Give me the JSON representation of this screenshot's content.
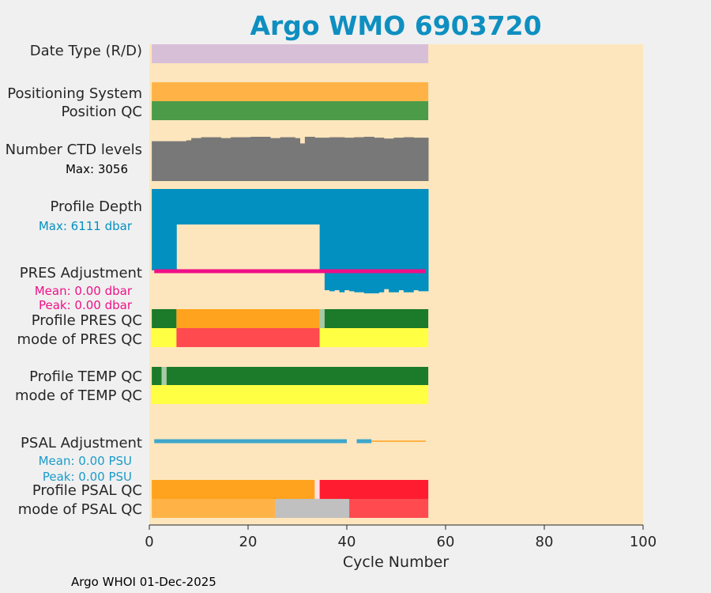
{
  "chart_data": {
    "type": "bar",
    "title": "Argo WMO 6903720",
    "xlabel": "Cycle Number",
    "xlim": [
      0,
      100
    ],
    "xticks": [
      "0",
      "20",
      "40",
      "60",
      "80",
      "100"
    ],
    "footer": "Argo WHOI 01-Dec-2025",
    "row_labels": [
      "Date Type (R/D)",
      "Positioning System",
      "Position QC",
      "Number CTD levels",
      "Profile Depth",
      "PRES Adjustment",
      "Profile PRES QC",
      "mode of PRES QC",
      "Profile TEMP QC",
      "mode of TEMP QC",
      "PSAL Adjustment",
      "Profile PSAL QC",
      "mode of PSAL QC"
    ],
    "annotations": {
      "ctd_max": "Max: 3056",
      "depth_max": "Max: 6111 dbar",
      "pres_mean": "Mean: 0.00 dbar",
      "pres_peak": "Peak: 0.00 dbar",
      "psal_mean": "Mean: 0.00 PSU",
      "psal_peak": "Peak: 0.00 PSU"
    },
    "ctd_levels_max": 3056,
    "ctd_levels_profile": [
      {
        "start": 0.5,
        "end": 7.5,
        "rel": 0.9
      },
      {
        "start": 7.5,
        "end": 8.5,
        "rel": 0.92
      },
      {
        "start": 8.5,
        "end": 10.5,
        "rel": 0.97
      },
      {
        "start": 10.5,
        "end": 14.5,
        "rel": 0.99
      },
      {
        "start": 14.5,
        "end": 16.5,
        "rel": 0.97
      },
      {
        "start": 16.5,
        "end": 20.5,
        "rel": 0.99
      },
      {
        "start": 20.5,
        "end": 24.5,
        "rel": 1.0
      },
      {
        "start": 24.5,
        "end": 26.5,
        "rel": 0.97
      },
      {
        "start": 26.5,
        "end": 29.5,
        "rel": 0.99
      },
      {
        "start": 29.5,
        "end": 30.5,
        "rel": 0.97
      },
      {
        "start": 30.5,
        "end": 31.5,
        "rel": 0.85
      },
      {
        "start": 31.5,
        "end": 33.5,
        "rel": 1.0
      },
      {
        "start": 33.5,
        "end": 36.5,
        "rel": 0.98
      },
      {
        "start": 36.5,
        "end": 39.5,
        "rel": 0.99
      },
      {
        "start": 39.5,
        "end": 41.5,
        "rel": 0.98
      },
      {
        "start": 41.5,
        "end": 43.5,
        "rel": 0.99
      },
      {
        "start": 43.5,
        "end": 45.5,
        "rel": 1.0
      },
      {
        "start": 45.5,
        "end": 47.5,
        "rel": 0.98
      },
      {
        "start": 47.5,
        "end": 49.5,
        "rel": 0.96
      },
      {
        "start": 49.5,
        "end": 51.5,
        "rel": 0.98
      },
      {
        "start": 51.5,
        "end": 53.5,
        "rel": 0.99
      },
      {
        "start": 53.5,
        "end": 56.5,
        "rel": 0.98
      }
    ],
    "profile_depth_max_dbar": 6111,
    "profile_depth": [
      {
        "start": 0.5,
        "end": 5.5,
        "rel": 0.78
      },
      {
        "start": 5.5,
        "end": 34.5,
        "rel": 0.34
      },
      {
        "start": 34.5,
        "end": 35.5,
        "rel": 0.78
      },
      {
        "start": 35.5,
        "end": 36.5,
        "rel": 0.97
      },
      {
        "start": 36.5,
        "end": 37.5,
        "rel": 0.98
      },
      {
        "start": 37.5,
        "end": 38.5,
        "rel": 0.97
      },
      {
        "start": 38.5,
        "end": 39.5,
        "rel": 0.99
      },
      {
        "start": 39.5,
        "end": 40.5,
        "rel": 0.97
      },
      {
        "start": 40.5,
        "end": 41.5,
        "rel": 0.98
      },
      {
        "start": 41.5,
        "end": 43.5,
        "rel": 0.99
      },
      {
        "start": 43.5,
        "end": 46.5,
        "rel": 1.0
      },
      {
        "start": 46.5,
        "end": 47.5,
        "rel": 0.99
      },
      {
        "start": 47.5,
        "end": 48.5,
        "rel": 0.96
      },
      {
        "start": 48.5,
        "end": 50.5,
        "rel": 0.99
      },
      {
        "start": 50.5,
        "end": 51.5,
        "rel": 0.97
      },
      {
        "start": 51.5,
        "end": 53.5,
        "rel": 0.99
      },
      {
        "start": 53.5,
        "end": 54.5,
        "rel": 0.97
      },
      {
        "start": 54.5,
        "end": 56.5,
        "rel": 0.98
      }
    ],
    "segments": [
      {
        "row": 0,
        "start": 0.5,
        "end": 56.5,
        "color": "#d8bfd8"
      },
      {
        "row": 1,
        "start": 0.5,
        "end": 56.5,
        "color": "#ffb347"
      },
      {
        "row": 2,
        "start": 0.5,
        "end": 56.5,
        "color": "#4b9b49"
      },
      {
        "row": 6,
        "start": 0.5,
        "end": 5.5,
        "color": "#1b7b2b"
      },
      {
        "row": 6,
        "start": 5.5,
        "end": 34.5,
        "color": "#ffa21d"
      },
      {
        "row": 6,
        "start": 34.5,
        "end": 35.5,
        "color": "#a6c9a6"
      },
      {
        "row": 6,
        "start": 35.5,
        "end": 56.5,
        "color": "#1b7b2b"
      },
      {
        "row": 7,
        "start": 0.5,
        "end": 5.5,
        "color": "#ffff44"
      },
      {
        "row": 7,
        "start": 5.5,
        "end": 34.5,
        "color": "#ff4a50"
      },
      {
        "row": 7,
        "start": 34.5,
        "end": 56.5,
        "color": "#ffff44"
      },
      {
        "row": 8,
        "start": 0.5,
        "end": 2.5,
        "color": "#1b7b2b"
      },
      {
        "row": 8,
        "start": 2.5,
        "end": 3.5,
        "color": "#a6c9a6"
      },
      {
        "row": 8,
        "start": 3.5,
        "end": 56.5,
        "color": "#1b7b2b"
      },
      {
        "row": 9,
        "start": 0.5,
        "end": 56.5,
        "color": "#ffff44"
      },
      {
        "row": 11,
        "start": 0.5,
        "end": 33.5,
        "color": "#ffa21d"
      },
      {
        "row": 11,
        "start": 33.5,
        "end": 34.5,
        "color": "#ffe0e0"
      },
      {
        "row": 11,
        "start": 34.5,
        "end": 56.5,
        "color": "#ff1c30"
      },
      {
        "row": 12,
        "start": 0.5,
        "end": 25.5,
        "color": "#ffb347"
      },
      {
        "row": 12,
        "start": 25.5,
        "end": 56.5,
        "color": "#c0c0c0"
      },
      {
        "row": 12,
        "start": 40.5,
        "end": 56.5,
        "color": "#ff4a50"
      }
    ],
    "pres_adjustment_line": {
      "start": 1,
      "end": 56,
      "value": 0.0
    },
    "psal_adjustment_lines": [
      {
        "start": 1,
        "end": 40,
        "value": 0.0,
        "style": "thick"
      },
      {
        "start": 42,
        "end": 45,
        "value": 0.0,
        "style": "thick"
      },
      {
        "start": 45,
        "end": 56,
        "value": 0.0,
        "style": "thin"
      }
    ],
    "colors": {
      "page_background": "#f0f0f0",
      "axes_background": "#fde6bd",
      "title": "#0e8fc0",
      "ctd": "#787878",
      "depth": "#0290c0",
      "pres_adj": "#ef1187",
      "psal_adj": "#3ea7cc",
      "psal_adj_thin": "#ffb347",
      "label_text": "#262626",
      "ctd_annotation": "#000000",
      "psal_annotation": "#1a9bc9"
    }
  }
}
